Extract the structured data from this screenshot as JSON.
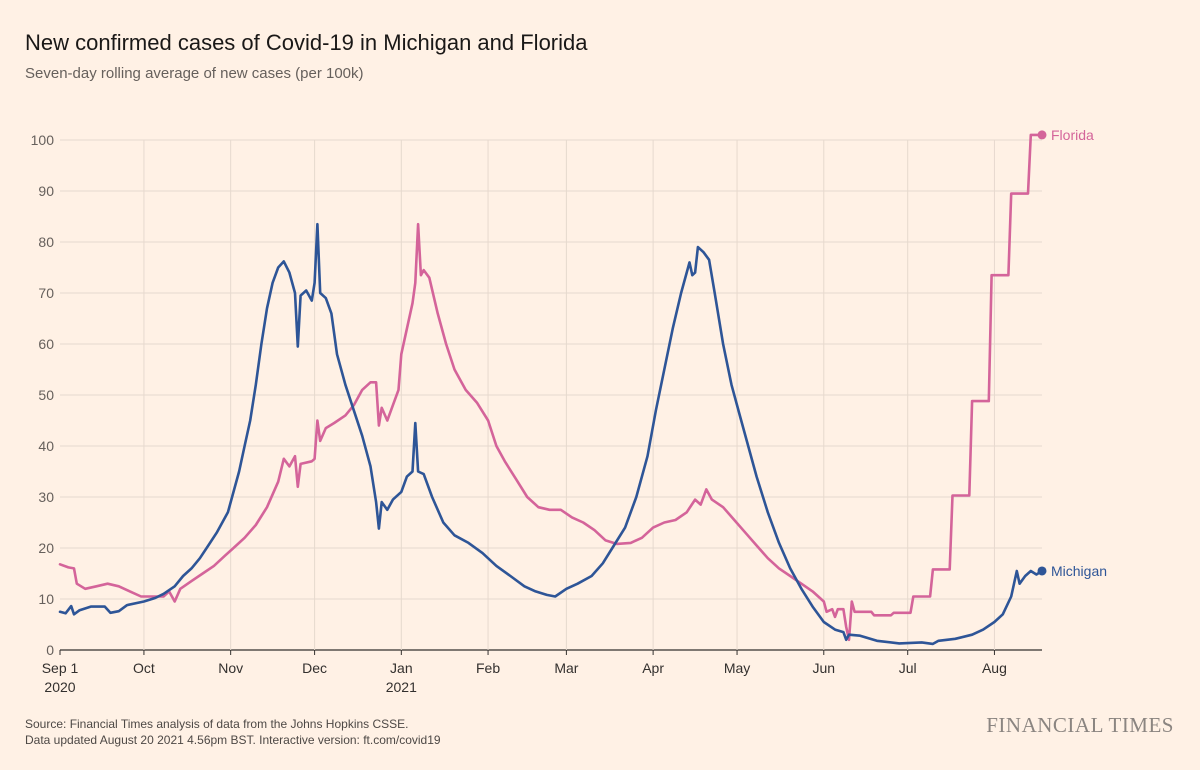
{
  "chart_data": {
    "type": "line",
    "title": "New confirmed cases of Covid-19 in Michigan and Florida",
    "subtitle": "Seven-day rolling average of new cases (per 100k)",
    "x_start": "2020-09-01",
    "x_end": "2021-08-18",
    "ylim": [
      0,
      100
    ],
    "yticks": [
      0,
      10,
      20,
      30,
      40,
      50,
      60,
      70,
      80,
      90,
      100
    ],
    "xticks": [
      {
        "date": "2020-09-01",
        "label": "Sep 1",
        "sublabel": "2020"
      },
      {
        "date": "2020-10-01",
        "label": "Oct",
        "sublabel": ""
      },
      {
        "date": "2020-11-01",
        "label": "Nov",
        "sublabel": ""
      },
      {
        "date": "2020-12-01",
        "label": "Dec",
        "sublabel": ""
      },
      {
        "date": "2021-01-01",
        "label": "Jan",
        "sublabel": "2021"
      },
      {
        "date": "2021-02-01",
        "label": "Feb",
        "sublabel": ""
      },
      {
        "date": "2021-03-01",
        "label": "Mar",
        "sublabel": ""
      },
      {
        "date": "2021-04-01",
        "label": "Apr",
        "sublabel": ""
      },
      {
        "date": "2021-05-01",
        "label": "May",
        "sublabel": ""
      },
      {
        "date": "2021-06-01",
        "label": "Jun",
        "sublabel": ""
      },
      {
        "date": "2021-07-01",
        "label": "Jul",
        "sublabel": ""
      },
      {
        "date": "2021-08-01",
        "label": "Aug",
        "sublabel": ""
      }
    ],
    "grid": true,
    "legend": "end-of-line labels",
    "series": [
      {
        "name": "Michigan",
        "color": "#2E5597",
        "points": [
          [
            "2020-09-01",
            7.5
          ],
          [
            "2020-09-03",
            7.2
          ],
          [
            "2020-09-05",
            8.6
          ],
          [
            "2020-09-06",
            7.0
          ],
          [
            "2020-09-08",
            7.8
          ],
          [
            "2020-09-12",
            8.5
          ],
          [
            "2020-09-17",
            8.5
          ],
          [
            "2020-09-19",
            7.3
          ],
          [
            "2020-09-22",
            7.6
          ],
          [
            "2020-09-25",
            8.8
          ],
          [
            "2020-10-01",
            9.5
          ],
          [
            "2020-10-05",
            10.2
          ],
          [
            "2020-10-08",
            11.0
          ],
          [
            "2020-10-12",
            12.5
          ],
          [
            "2020-10-15",
            14.5
          ],
          [
            "2020-10-18",
            16.0
          ],
          [
            "2020-10-21",
            18.0
          ],
          [
            "2020-10-24",
            20.5
          ],
          [
            "2020-10-27",
            23.0
          ],
          [
            "2020-10-31",
            27.0
          ],
          [
            "2020-11-02",
            31.0
          ],
          [
            "2020-11-04",
            35.0
          ],
          [
            "2020-11-06",
            40.0
          ],
          [
            "2020-11-08",
            45.0
          ],
          [
            "2020-11-10",
            52.0
          ],
          [
            "2020-11-12",
            60.0
          ],
          [
            "2020-11-14",
            67.0
          ],
          [
            "2020-11-16",
            72.0
          ],
          [
            "2020-11-18",
            75.0
          ],
          [
            "2020-11-20",
            76.2
          ],
          [
            "2020-11-22",
            74.0
          ],
          [
            "2020-11-24",
            70.0
          ],
          [
            "2020-11-25",
            59.5
          ],
          [
            "2020-11-26",
            69.5
          ],
          [
            "2020-11-28",
            70.5
          ],
          [
            "2020-11-30",
            68.5
          ],
          [
            "2020-12-01",
            72.0
          ],
          [
            "2020-12-02",
            83.5
          ],
          [
            "2020-12-03",
            70.0
          ],
          [
            "2020-12-05",
            69.0
          ],
          [
            "2020-12-07",
            66.0
          ],
          [
            "2020-12-09",
            58.0
          ],
          [
            "2020-12-12",
            52.0
          ],
          [
            "2020-12-15",
            47.0
          ],
          [
            "2020-12-18",
            42.0
          ],
          [
            "2020-12-21",
            36.0
          ],
          [
            "2020-12-23",
            29.0
          ],
          [
            "2020-12-24",
            23.8
          ],
          [
            "2020-12-25",
            29.0
          ],
          [
            "2020-12-27",
            27.5
          ],
          [
            "2020-12-29",
            29.5
          ],
          [
            "2021-01-01",
            31.0
          ],
          [
            "2021-01-03",
            34.0
          ],
          [
            "2021-01-05",
            35.0
          ],
          [
            "2021-01-06",
            44.5
          ],
          [
            "2021-01-07",
            35.0
          ],
          [
            "2021-01-09",
            34.5
          ],
          [
            "2021-01-12",
            30.0
          ],
          [
            "2021-01-16",
            25.0
          ],
          [
            "2021-01-20",
            22.5
          ],
          [
            "2021-01-25",
            21.0
          ],
          [
            "2021-01-30",
            19.0
          ],
          [
            "2021-02-04",
            16.5
          ],
          [
            "2021-02-09",
            14.5
          ],
          [
            "2021-02-14",
            12.5
          ],
          [
            "2021-02-18",
            11.5
          ],
          [
            "2021-02-22",
            10.8
          ],
          [
            "2021-02-25",
            10.5
          ],
          [
            "2021-03-01",
            12.0
          ],
          [
            "2021-03-05",
            13.0
          ],
          [
            "2021-03-10",
            14.5
          ],
          [
            "2021-03-14",
            17.0
          ],
          [
            "2021-03-18",
            20.5
          ],
          [
            "2021-03-22",
            24.0
          ],
          [
            "2021-03-26",
            30.0
          ],
          [
            "2021-03-30",
            38.0
          ],
          [
            "2021-04-02",
            47.0
          ],
          [
            "2021-04-05",
            55.0
          ],
          [
            "2021-04-08",
            63.0
          ],
          [
            "2021-04-11",
            70.0
          ],
          [
            "2021-04-13",
            74.0
          ],
          [
            "2021-04-14",
            76.0
          ],
          [
            "2021-04-15",
            73.5
          ],
          [
            "2021-04-16",
            74.0
          ],
          [
            "2021-04-17",
            79.0
          ],
          [
            "2021-04-19",
            78.0
          ],
          [
            "2021-04-21",
            76.5
          ],
          [
            "2021-04-23",
            70.0
          ],
          [
            "2021-04-26",
            60.0
          ],
          [
            "2021-04-29",
            52.0
          ],
          [
            "2021-05-02",
            46.0
          ],
          [
            "2021-05-05",
            40.0
          ],
          [
            "2021-05-08",
            34.0
          ],
          [
            "2021-05-12",
            27.0
          ],
          [
            "2021-05-16",
            21.0
          ],
          [
            "2021-05-20",
            16.0
          ],
          [
            "2021-05-24",
            12.0
          ],
          [
            "2021-05-28",
            8.5
          ],
          [
            "2021-06-01",
            5.5
          ],
          [
            "2021-06-05",
            4.0
          ],
          [
            "2021-06-08",
            3.5
          ],
          [
            "2021-06-09",
            2.0
          ],
          [
            "2021-06-10",
            3.0
          ],
          [
            "2021-06-14",
            2.8
          ],
          [
            "2021-06-20",
            1.8
          ],
          [
            "2021-06-28",
            1.3
          ],
          [
            "2021-07-06",
            1.5
          ],
          [
            "2021-07-10",
            1.2
          ],
          [
            "2021-07-12",
            1.8
          ],
          [
            "2021-07-18",
            2.2
          ],
          [
            "2021-07-24",
            3.0
          ],
          [
            "2021-07-28",
            4.0
          ],
          [
            "2021-08-01",
            5.5
          ],
          [
            "2021-08-04",
            7.0
          ],
          [
            "2021-08-07",
            10.5
          ],
          [
            "2021-08-09",
            15.5
          ],
          [
            "2021-08-10",
            13.0
          ],
          [
            "2021-08-12",
            14.5
          ],
          [
            "2021-08-14",
            15.5
          ],
          [
            "2021-08-16",
            14.8
          ],
          [
            "2021-08-18",
            15.5
          ]
        ]
      },
      {
        "name": "Florida",
        "color": "#D4649A",
        "points": [
          [
            "2020-09-01",
            16.8
          ],
          [
            "2020-09-04",
            16.2
          ],
          [
            "2020-09-06",
            16.0
          ],
          [
            "2020-09-07",
            13.0
          ],
          [
            "2020-09-10",
            12.0
          ],
          [
            "2020-09-14",
            12.5
          ],
          [
            "2020-09-18",
            13.0
          ],
          [
            "2020-09-22",
            12.5
          ],
          [
            "2020-09-26",
            11.5
          ],
          [
            "2020-09-30",
            10.5
          ],
          [
            "2020-10-04",
            10.5
          ],
          [
            "2020-10-08",
            10.5
          ],
          [
            "2020-10-10",
            11.5
          ],
          [
            "2020-10-12",
            9.5
          ],
          [
            "2020-10-14",
            12.0
          ],
          [
            "2020-10-18",
            13.5
          ],
          [
            "2020-10-22",
            15.0
          ],
          [
            "2020-10-26",
            16.5
          ],
          [
            "2020-10-30",
            18.5
          ],
          [
            "2020-11-02",
            20.0
          ],
          [
            "2020-11-06",
            22.0
          ],
          [
            "2020-11-10",
            24.5
          ],
          [
            "2020-11-14",
            28.0
          ],
          [
            "2020-11-18",
            33.0
          ],
          [
            "2020-11-20",
            37.5
          ],
          [
            "2020-11-22",
            36.0
          ],
          [
            "2020-11-24",
            38.0
          ],
          [
            "2020-11-25",
            32.0
          ],
          [
            "2020-11-26",
            36.5
          ],
          [
            "2020-11-30",
            37.0
          ],
          [
            "2020-12-01",
            37.5
          ],
          [
            "2020-12-02",
            45.0
          ],
          [
            "2020-12-03",
            41.0
          ],
          [
            "2020-12-05",
            43.5
          ],
          [
            "2020-12-08",
            44.5
          ],
          [
            "2020-12-12",
            46.0
          ],
          [
            "2020-12-15",
            48.0
          ],
          [
            "2020-12-18",
            51.0
          ],
          [
            "2020-12-21",
            52.5
          ],
          [
            "2020-12-23",
            52.5
          ],
          [
            "2020-12-24",
            44.0
          ],
          [
            "2020-12-25",
            47.5
          ],
          [
            "2020-12-27",
            45.0
          ],
          [
            "2020-12-29",
            48.0
          ],
          [
            "2020-12-31",
            51.0
          ],
          [
            "2021-01-01",
            58.0
          ],
          [
            "2021-01-03",
            63.0
          ],
          [
            "2021-01-05",
            68.0
          ],
          [
            "2021-01-06",
            72.0
          ],
          [
            "2021-01-07",
            83.5
          ],
          [
            "2021-01-08",
            73.5
          ],
          [
            "2021-01-09",
            74.5
          ],
          [
            "2021-01-11",
            73.0
          ],
          [
            "2021-01-14",
            66.0
          ],
          [
            "2021-01-17",
            60.0
          ],
          [
            "2021-01-20",
            55.0
          ],
          [
            "2021-01-24",
            51.0
          ],
          [
            "2021-01-28",
            48.5
          ],
          [
            "2021-02-01",
            45.0
          ],
          [
            "2021-02-04",
            40.0
          ],
          [
            "2021-02-07",
            37.0
          ],
          [
            "2021-02-11",
            33.5
          ],
          [
            "2021-02-15",
            30.0
          ],
          [
            "2021-02-19",
            28.0
          ],
          [
            "2021-02-23",
            27.5
          ],
          [
            "2021-02-27",
            27.5
          ],
          [
            "2021-03-03",
            26.0
          ],
          [
            "2021-03-07",
            25.0
          ],
          [
            "2021-03-11",
            23.5
          ],
          [
            "2021-03-15",
            21.5
          ],
          [
            "2021-03-19",
            20.8
          ],
          [
            "2021-03-24",
            21.0
          ],
          [
            "2021-03-28",
            22.0
          ],
          [
            "2021-04-01",
            24.0
          ],
          [
            "2021-04-05",
            25.0
          ],
          [
            "2021-04-09",
            25.5
          ],
          [
            "2021-04-13",
            27.0
          ],
          [
            "2021-04-16",
            29.5
          ],
          [
            "2021-04-18",
            28.5
          ],
          [
            "2021-04-20",
            31.5
          ],
          [
            "2021-04-22",
            29.5
          ],
          [
            "2021-04-26",
            28.0
          ],
          [
            "2021-04-30",
            25.5
          ],
          [
            "2021-05-04",
            23.0
          ],
          [
            "2021-05-08",
            20.5
          ],
          [
            "2021-05-12",
            18.0
          ],
          [
            "2021-05-16",
            16.0
          ],
          [
            "2021-05-20",
            14.5
          ],
          [
            "2021-05-24",
            13.0
          ],
          [
            "2021-05-28",
            11.5
          ],
          [
            "2021-06-01",
            9.5
          ],
          [
            "2021-06-02",
            7.5
          ],
          [
            "2021-06-04",
            8.0
          ],
          [
            "2021-06-05",
            6.5
          ],
          [
            "2021-06-06",
            8.0
          ],
          [
            "2021-06-08",
            8.0
          ],
          [
            "2021-06-09",
            4.5
          ],
          [
            "2021-06-10",
            2.0
          ],
          [
            "2021-06-11",
            9.5
          ],
          [
            "2021-06-12",
            7.5
          ],
          [
            "2021-06-18",
            7.5
          ],
          [
            "2021-06-19",
            6.8
          ],
          [
            "2021-06-25",
            6.8
          ],
          [
            "2021-06-26",
            7.3
          ],
          [
            "2021-07-02",
            7.3
          ],
          [
            "2021-07-03",
            10.5
          ],
          [
            "2021-07-09",
            10.5
          ],
          [
            "2021-07-10",
            15.8
          ],
          [
            "2021-07-16",
            15.8
          ],
          [
            "2021-07-17",
            30.3
          ],
          [
            "2021-07-23",
            30.3
          ],
          [
            "2021-07-24",
            48.8
          ],
          [
            "2021-07-30",
            48.8
          ],
          [
            "2021-07-31",
            73.5
          ],
          [
            "2021-08-06",
            73.5
          ],
          [
            "2021-08-07",
            89.5
          ],
          [
            "2021-08-13",
            89.5
          ],
          [
            "2021-08-14",
            101.0
          ],
          [
            "2021-08-18",
            101.0
          ]
        ]
      }
    ]
  },
  "footer": {
    "source_line1": "Source: Financial Times analysis of data from the Johns Hopkins CSSE.",
    "source_line2": "Data updated August 20 2021 4.56pm BST. Interactive version: ft.com/covid19",
    "brand": "FINANCIAL TIMES"
  }
}
